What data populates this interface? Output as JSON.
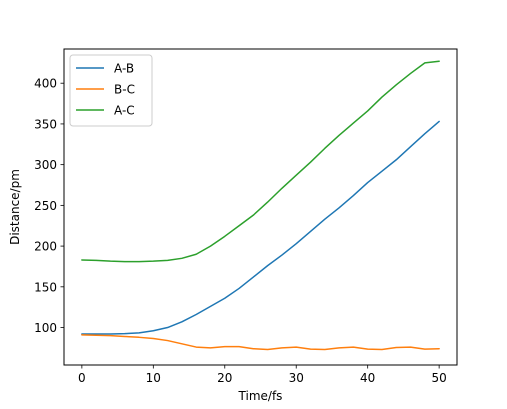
{
  "chart_data": {
    "type": "line",
    "title": "",
    "xlabel": "Time/fs",
    "ylabel": "Distance/pm",
    "xlim": [
      -2.5,
      52.5
    ],
    "ylim": [
      54,
      442
    ],
    "xticks": [
      0,
      10,
      20,
      30,
      40,
      50
    ],
    "yticks": [
      100,
      150,
      200,
      250,
      300,
      350,
      400
    ],
    "grid": false,
    "legend_position": "top-left",
    "series": [
      {
        "name": "A-B",
        "color": "#1f77b4",
        "x": [
          0,
          2,
          4,
          6,
          8,
          10,
          12,
          14,
          16,
          18,
          20,
          22,
          24,
          26,
          28,
          30,
          32,
          34,
          36,
          38,
          40,
          42,
          44,
          46,
          48,
          50
        ],
        "y": [
          92,
          92,
          92,
          92.5,
          93.5,
          96,
          100,
          107,
          116,
          126,
          136,
          148,
          162,
          176,
          189,
          203,
          218,
          233,
          247,
          262,
          278,
          292,
          306,
          322,
          338,
          353
        ]
      },
      {
        "name": "B-C",
        "color": "#ff7f0e",
        "x": [
          0,
          2,
          4,
          6,
          8,
          10,
          12,
          14,
          16,
          18,
          20,
          22,
          24,
          26,
          28,
          30,
          32,
          34,
          36,
          38,
          40,
          42,
          44,
          46,
          48,
          50
        ],
        "y": [
          91,
          90.5,
          90,
          89,
          88,
          86.5,
          84,
          80,
          76,
          75,
          76.5,
          76.5,
          74,
          73,
          75,
          76,
          73.5,
          73,
          75,
          76,
          73.5,
          73,
          75.5,
          76,
          73.5,
          74
        ]
      },
      {
        "name": "A-C",
        "color": "#2ca02c",
        "x": [
          0,
          2,
          4,
          6,
          8,
          10,
          12,
          14,
          16,
          18,
          20,
          22,
          24,
          26,
          28,
          30,
          32,
          34,
          36,
          38,
          40,
          42,
          44,
          46,
          48,
          50
        ],
        "y": [
          183,
          182.5,
          181.5,
          181,
          181,
          181.5,
          182.5,
          185,
          190,
          200,
          212,
          225,
          238,
          254,
          271,
          287,
          303,
          320,
          336,
          351,
          366,
          383,
          398,
          412,
          425,
          427
        ]
      }
    ]
  }
}
